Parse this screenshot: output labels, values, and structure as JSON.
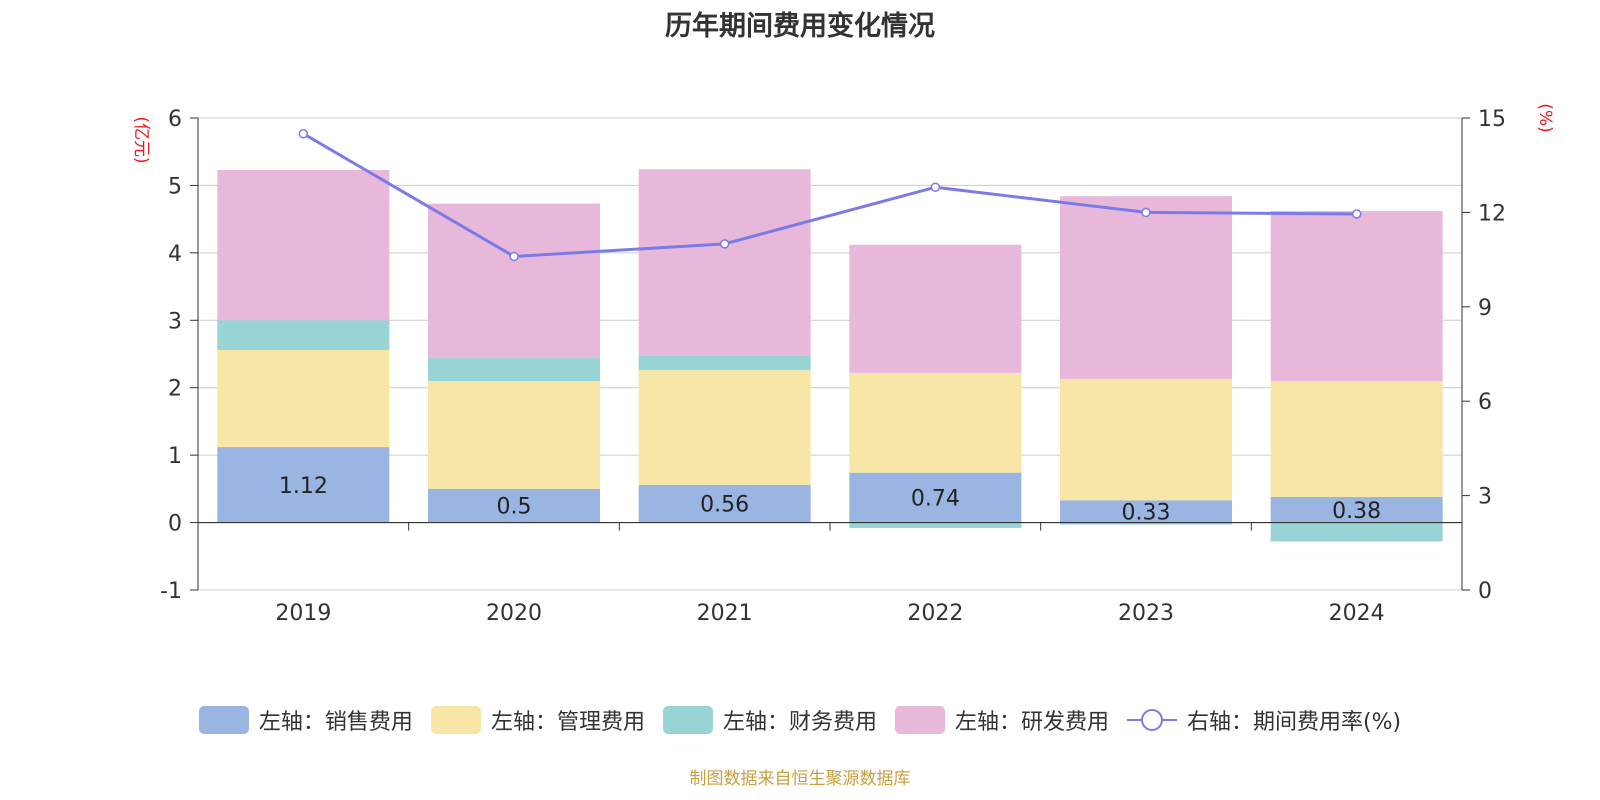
{
  "title": "历年期间费用变化情况",
  "footer": "制图数据来自恒生聚源数据库",
  "chart_data": {
    "type": "bar",
    "stacked": true,
    "title": "历年期间费用变化情况",
    "categories": [
      "2019",
      "2020",
      "2021",
      "2022",
      "2023",
      "2024"
    ],
    "y_left": {
      "label": "(亿元)",
      "min": -1,
      "max": 6,
      "ticks": [
        -1,
        0,
        1,
        2,
        3,
        4,
        5,
        6
      ]
    },
    "y_right": {
      "label": "(%)",
      "min": 0,
      "max": 15,
      "ticks": [
        0,
        3,
        6,
        9,
        12,
        15
      ]
    },
    "series": [
      {
        "name": "左轴：销售费用",
        "axis": "left",
        "color": "#9bb5e2",
        "values": [
          1.12,
          0.5,
          0.56,
          0.74,
          0.33,
          0.38
        ],
        "labels": [
          "1.12",
          "0.5",
          "0.56",
          "0.74",
          "0.33",
          "0.38"
        ]
      },
      {
        "name": "左轴：管理费用",
        "axis": "left",
        "color": "#f7e6a6",
        "values": [
          1.44,
          1.6,
          1.7,
          1.48,
          1.8,
          1.72
        ]
      },
      {
        "name": "左轴：财务费用",
        "axis": "left",
        "color": "#98d4d6",
        "values": [
          0.44,
          0.34,
          0.22,
          -0.08,
          -0.03,
          -0.28
        ]
      },
      {
        "name": "左轴：研发费用",
        "axis": "left",
        "color": "#e7b8d9",
        "values": [
          2.23,
          2.29,
          2.76,
          1.9,
          2.71,
          2.52
        ]
      },
      {
        "name": "右轴：期间费用率(%)",
        "axis": "right",
        "type": "line",
        "color": "#7b7be8",
        "values": [
          14.5,
          10.6,
          11.0,
          12.8,
          12.0,
          11.95
        ]
      }
    ],
    "grid": true,
    "legend_position": "bottom"
  }
}
